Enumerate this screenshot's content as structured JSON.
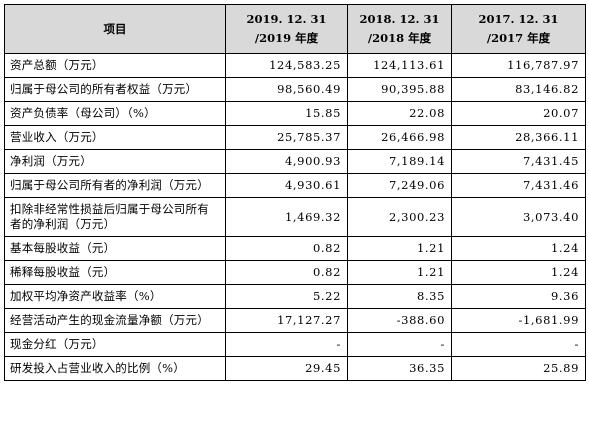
{
  "header": {
    "item": "项目",
    "periods": [
      {
        "date": "2019. 12. 31",
        "year": "/2019 年度"
      },
      {
        "date": "2018. 12. 31",
        "year": "/2018 年度"
      },
      {
        "date": "2017. 12. 31",
        "year": "/2017 年度"
      }
    ]
  },
  "rows": [
    {
      "label": "资产总额（万元）",
      "values": [
        "124,583.25",
        "124,113.61",
        "116,787.97"
      ]
    },
    {
      "label": "归属于母公司的所有者权益（万元）",
      "values": [
        "98,560.49",
        "90,395.88",
        "83,146.82"
      ]
    },
    {
      "label": "资产负债率（母公司）（%）",
      "values": [
        "15.85",
        "22.08",
        "20.07"
      ]
    },
    {
      "label": "营业收入（万元）",
      "values": [
        "25,785.37",
        "26,466.98",
        "28,366.11"
      ]
    },
    {
      "label": "净利润（万元）",
      "values": [
        "4,900.93",
        "7,189.14",
        "7,431.45"
      ]
    },
    {
      "label": "归属于母公司所有者的净利润（万元）",
      "values": [
        "4,930.61",
        "7,249.06",
        "7,431.46"
      ]
    },
    {
      "label": "扣除非经常性损益后归属于母公司所有者的净利润（万元）",
      "values": [
        "1,469.32",
        "2,300.23",
        "3,073.40"
      ]
    },
    {
      "label": "基本每股收益（元）",
      "values": [
        "0.82",
        "1.21",
        "1.24"
      ]
    },
    {
      "label": "稀释每股收益（元）",
      "values": [
        "0.82",
        "1.21",
        "1.24"
      ]
    },
    {
      "label": "加权平均净资产收益率（%）",
      "values": [
        "5.22",
        "8.35",
        "9.36"
      ]
    },
    {
      "label": "经营活动产生的现金流量净额（万元）",
      "values": [
        "17,127.27",
        "-388.60",
        "-1,681.99"
      ]
    },
    {
      "label": "现金分红（万元）",
      "values": [
        "-",
        "-",
        "-"
      ]
    },
    {
      "label": "研发投入占营业收入的比例（%）",
      "values": [
        "29.45",
        "36.35",
        "25.89"
      ]
    }
  ]
}
